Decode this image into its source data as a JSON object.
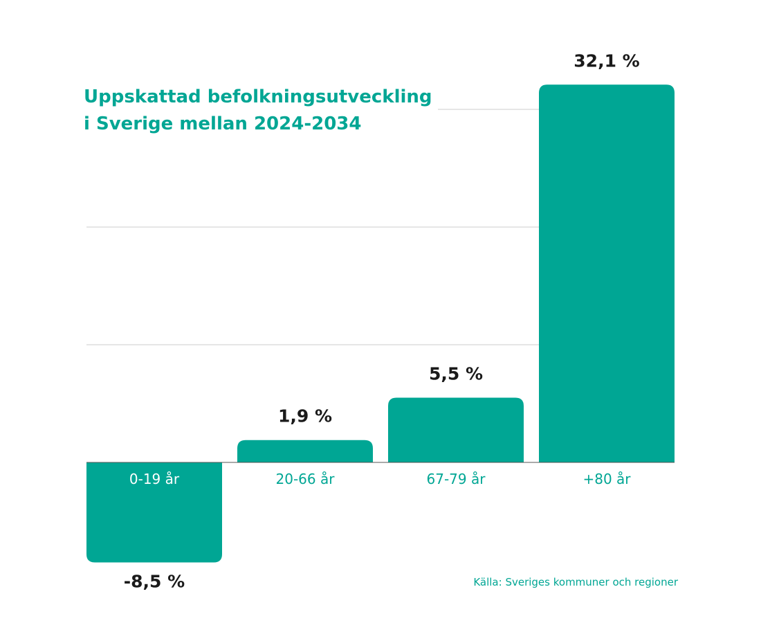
{
  "chart_data": {
    "type": "bar",
    "title_lines": [
      "Uppskattad befolkningsutveckling",
      "i Sverige mellan 2024-2034"
    ],
    "categories": [
      "0-19 år",
      "20-66 år",
      "67-79 år",
      "+80 år"
    ],
    "values": [
      -8.5,
      1.9,
      5.5,
      32.1
    ],
    "value_labels": [
      "-8,5 %",
      "1,9 %",
      "5,5 %",
      "32,1 %"
    ],
    "ylim": [
      -10,
      35
    ],
    "gridlines": [
      10,
      20,
      30
    ],
    "grid": true,
    "legend": "none",
    "source": "Källa: Sveriges kommuner och regioner"
  },
  "colors": {
    "bar": "#00a694",
    "title": "#00a694",
    "category_on_bar": "#ffffff",
    "category": "#00a694",
    "value_label": "#1a1a1a",
    "grid": "#d6d6d6",
    "baseline": "#555555",
    "background": "#ffffff"
  }
}
